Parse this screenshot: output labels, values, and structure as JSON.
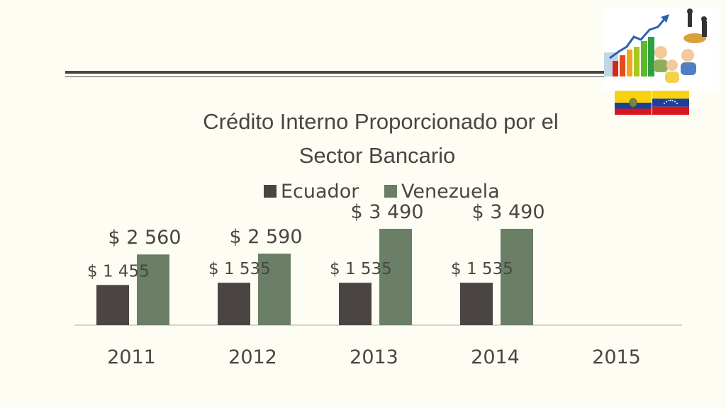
{
  "colors": {
    "ecuador": "#4a4543",
    "venezuela": "#6b7f66",
    "text": "#4a4543",
    "background": "#fdfdf4"
  },
  "decoration": {
    "clipart_icon": "growth-chart-people-icon",
    "flag_ecuador_icon": "ecuador-flag-icon",
    "flag_venezuela_icon": "venezuela-flag-icon"
  },
  "chart_data": {
    "type": "bar",
    "title_lines": [
      "Crédito Interno Proporcionado por el",
      "Sector Bancario"
    ],
    "categories": [
      "2011",
      "2012",
      "2013",
      "2014",
      "2015"
    ],
    "series": [
      {
        "name": "Ecuador",
        "values": [
          1455,
          1535,
          1535,
          1535,
          null
        ],
        "labels": [
          "$ 1 455",
          "$ 1 535",
          "$ 1 535",
          "$ 1 535",
          ""
        ]
      },
      {
        "name": "Venezuela",
        "values": [
          2560,
          2590,
          3490,
          3490,
          null
        ],
        "labels": [
          "$ 2 560",
          "$ 2 590",
          "$ 3 490",
          "$ 3 490",
          ""
        ]
      }
    ],
    "legend_position": "top",
    "grid": false,
    "ylim": [
      0,
      3500
    ]
  }
}
